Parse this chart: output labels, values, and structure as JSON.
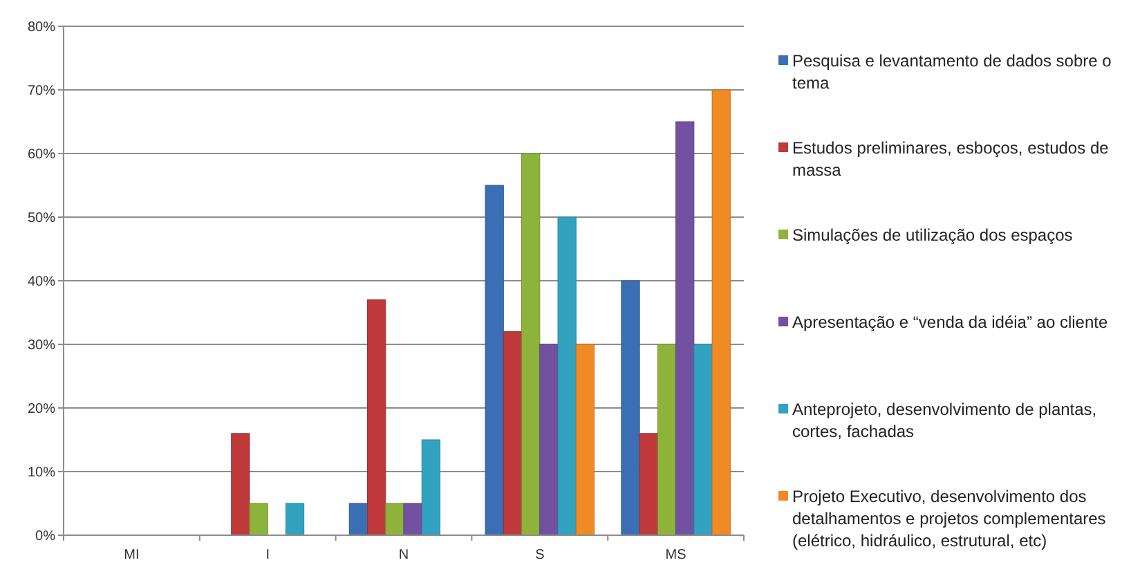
{
  "chart_data": {
    "type": "bar",
    "categories": [
      "MI",
      "I",
      "N",
      "S",
      "MS"
    ],
    "series": [
      {
        "name": "Pesquisa e levantamento de dados sobre o tema",
        "color": "#3a6eb5",
        "values": [
          0,
          0,
          5,
          55,
          40
        ]
      },
      {
        "name": "Estudos preliminares, esboços, estudos de massa",
        "color": "#c0393a",
        "values": [
          0,
          16,
          37,
          32,
          16
        ]
      },
      {
        "name": "Simulações de utilização dos espaços",
        "color": "#8db33a",
        "values": [
          0,
          5,
          5,
          60,
          30
        ]
      },
      {
        "name": "Apresentação e “venda da idéia” ao cliente",
        "color": "#7251a0",
        "values": [
          0,
          0,
          5,
          30,
          65
        ]
      },
      {
        "name": "Anteprojeto, desenvolvimento de plantas, cortes, fachadas",
        "color": "#31a3c0",
        "values": [
          0,
          5,
          15,
          50,
          30
        ]
      },
      {
        "name": "Projeto Executivo, desenvolvimento dos detalhamentos e projetos complementares (elétrico, hidráulico, estrutural, etc)",
        "color": "#f08a24",
        "values": [
          0,
          0,
          0,
          30,
          70
        ]
      }
    ],
    "ylim": [
      0,
      80
    ],
    "yticks": [
      {
        "value": 0,
        "label": "0%"
      },
      {
        "value": 10,
        "label": "10%"
      },
      {
        "value": 20,
        "label": "20%"
      },
      {
        "value": 30,
        "label": "30%"
      },
      {
        "value": 40,
        "label": "40%"
      },
      {
        "value": 50,
        "label": "50%"
      },
      {
        "value": 60,
        "label": "60%"
      },
      {
        "value": 70,
        "label": "70%"
      },
      {
        "value": 80,
        "label": "80%"
      }
    ],
    "grid": "y",
    "legend": "right"
  }
}
